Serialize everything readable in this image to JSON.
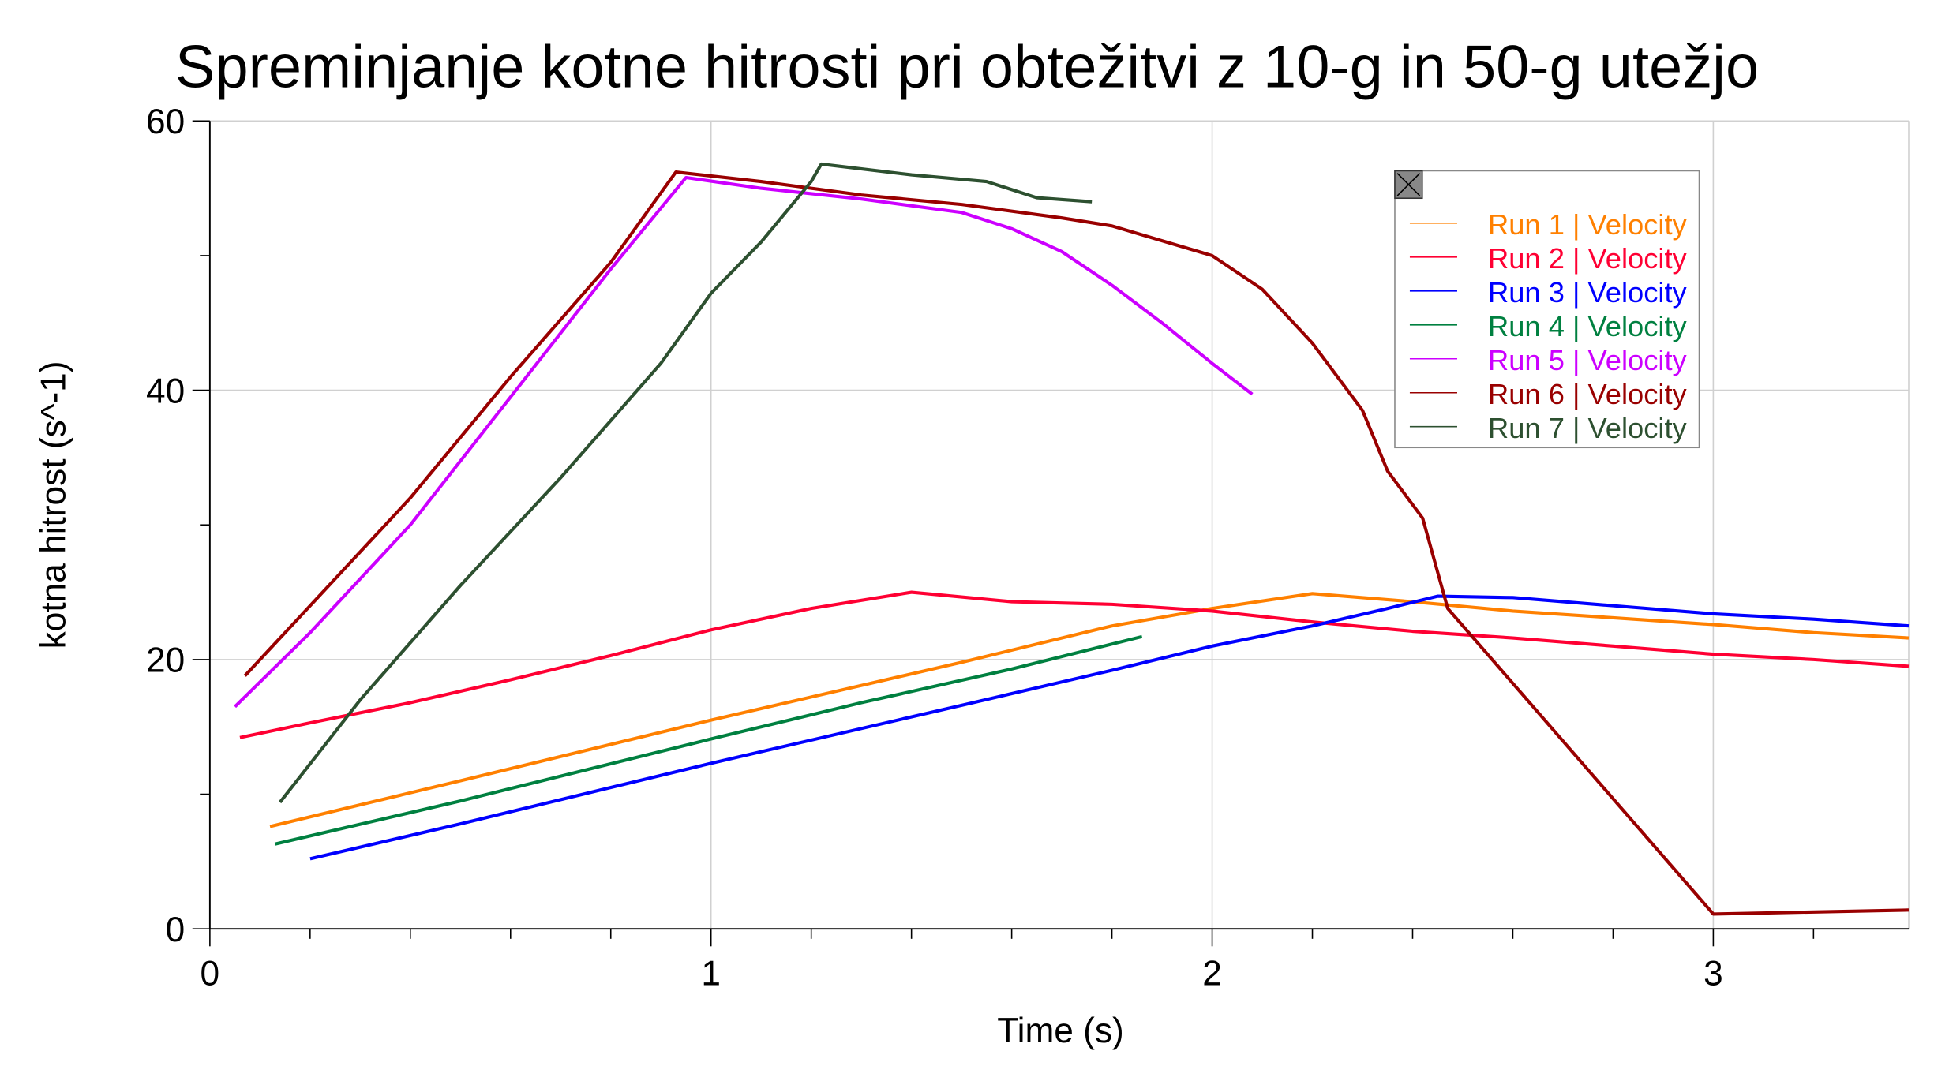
{
  "chart_data": {
    "type": "line",
    "title": "Spreminjanje kotne hitrosti pri obtežitvi z 10-g in 50-g utežjo",
    "xlabel": "Time (s)",
    "ylabel": "kotna hitrost (s^-1)",
    "xlim": [
      0,
      3.39
    ],
    "ylim": [
      0,
      60
    ],
    "xticks": [
      "0",
      "1",
      "2",
      "3"
    ],
    "yticks": [
      "0",
      "20",
      "40",
      "60"
    ],
    "grid": true,
    "legend_position": "top-right",
    "series": [
      {
        "name": "Run 1 | Velocity",
        "color": "#ff8000",
        "points": [
          [
            0.12,
            7.6
          ],
          [
            0.5,
            11
          ],
          [
            1,
            15.5
          ],
          [
            1.5,
            19.8
          ],
          [
            1.8,
            22.5
          ],
          [
            2,
            23.8
          ],
          [
            2.2,
            24.9
          ],
          [
            2.4,
            24.3
          ],
          [
            2.6,
            23.6
          ],
          [
            2.8,
            23.1
          ],
          [
            3,
            22.6
          ],
          [
            3.2,
            22
          ],
          [
            3.39,
            21.6
          ]
        ]
      },
      {
        "name": "Run 2 | Velocity",
        "color": "#ff0033",
        "points": [
          [
            0.06,
            14.2
          ],
          [
            0.2,
            15.3
          ],
          [
            0.4,
            16.8
          ],
          [
            0.6,
            18.5
          ],
          [
            0.8,
            20.3
          ],
          [
            1,
            22.2
          ],
          [
            1.2,
            23.8
          ],
          [
            1.4,
            25
          ],
          [
            1.6,
            24.3
          ],
          [
            1.8,
            24.1
          ],
          [
            2,
            23.6
          ],
          [
            2.2,
            22.8
          ],
          [
            2.4,
            22.1
          ],
          [
            2.6,
            21.6
          ],
          [
            2.8,
            21
          ],
          [
            3,
            20.4
          ],
          [
            3.2,
            20
          ],
          [
            3.39,
            19.5
          ]
        ]
      },
      {
        "name": "Run 3 | Velocity",
        "color": "#0000ff",
        "points": [
          [
            0.2,
            5.2
          ],
          [
            0.5,
            7.8
          ],
          [
            1,
            12.3
          ],
          [
            1.5,
            16.6
          ],
          [
            1.8,
            19.2
          ],
          [
            2,
            21
          ],
          [
            2.2,
            22.5
          ],
          [
            2.35,
            23.8
          ],
          [
            2.45,
            24.7
          ],
          [
            2.6,
            24.6
          ],
          [
            2.8,
            24
          ],
          [
            3,
            23.4
          ],
          [
            3.2,
            23
          ],
          [
            3.39,
            22.5
          ]
        ]
      },
      {
        "name": "Run 4 | Velocity",
        "color": "#008040",
        "points": [
          [
            0.13,
            6.3
          ],
          [
            0.5,
            9.5
          ],
          [
            1,
            14.1
          ],
          [
            1.3,
            16.8
          ],
          [
            1.6,
            19.3
          ],
          [
            1.86,
            21.7
          ]
        ]
      },
      {
        "name": "Run 5 | Velocity",
        "color": "#cc00ff",
        "points": [
          [
            0.05,
            16.5
          ],
          [
            0.2,
            22
          ],
          [
            0.4,
            30
          ],
          [
            0.6,
            39.5
          ],
          [
            0.8,
            49
          ],
          [
            0.95,
            55.8
          ],
          [
            1.1,
            55
          ],
          [
            1.3,
            54.2
          ],
          [
            1.5,
            53.2
          ],
          [
            1.6,
            52
          ],
          [
            1.7,
            50.3
          ],
          [
            1.8,
            47.8
          ],
          [
            1.9,
            45
          ],
          [
            2,
            42
          ],
          [
            2.08,
            39.7
          ]
        ]
      },
      {
        "name": "Run 6 | Velocity",
        "color": "#990000",
        "points": [
          [
            0.07,
            18.8
          ],
          [
            0.2,
            24
          ],
          [
            0.4,
            32
          ],
          [
            0.6,
            41
          ],
          [
            0.8,
            49.5
          ],
          [
            0.93,
            56.2
          ],
          [
            1.1,
            55.5
          ],
          [
            1.3,
            54.5
          ],
          [
            1.5,
            53.8
          ],
          [
            1.7,
            52.8
          ],
          [
            1.8,
            52.2
          ],
          [
            2,
            50
          ],
          [
            2.1,
            47.5
          ],
          [
            2.2,
            43.5
          ],
          [
            2.3,
            38.5
          ],
          [
            2.35,
            34
          ],
          [
            2.42,
            30.5
          ],
          [
            2.47,
            23.8
          ],
          [
            3,
            1.1
          ],
          [
            3.39,
            1.4
          ]
        ]
      },
      {
        "name": "Run 7 | Velocity",
        "color": "#2d5030",
        "points": [
          [
            0.14,
            9.4
          ],
          [
            0.3,
            17
          ],
          [
            0.5,
            25.5
          ],
          [
            0.7,
            33.5
          ],
          [
            0.9,
            42
          ],
          [
            1,
            47.2
          ],
          [
            1.1,
            51
          ],
          [
            1.2,
            55.5
          ],
          [
            1.22,
            56.8
          ],
          [
            1.4,
            56
          ],
          [
            1.55,
            55.5
          ],
          [
            1.65,
            54.3
          ],
          [
            1.76,
            54
          ]
        ]
      }
    ]
  }
}
